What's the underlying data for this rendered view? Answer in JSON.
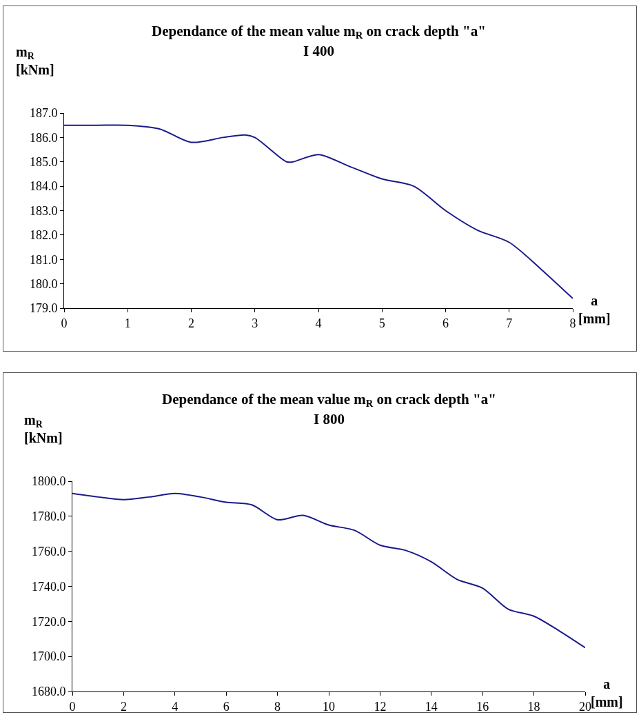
{
  "chart_data": [
    {
      "type": "line",
      "title": "Dependance of the mean value m$_{R}$ on crack depth \"a\"",
      "subtitle": "I 400",
      "ylabel": "m$_{R}$\n[kNm]",
      "xlabel": "a\n[mm]",
      "grid": false,
      "line_style": "solid",
      "x": [
        0,
        0.5,
        1,
        1.5,
        2,
        2.5,
        2.85,
        3,
        3.5,
        3.6,
        4,
        4.5,
        5,
        5.5,
        6,
        6.5,
        7,
        7.5,
        8
      ],
      "series": [
        {
          "color": "#1a1a8c",
          "values": [
            186.5,
            186.5,
            186.5,
            186.35,
            185.8,
            186.0,
            186.1,
            186.0,
            185.0,
            185.0,
            185.3,
            184.8,
            184.3,
            184.0,
            183.0,
            182.2,
            181.7,
            180.6,
            179.4
          ]
        }
      ],
      "xlim": [
        0,
        8
      ],
      "xticks": [
        0,
        1,
        2,
        3,
        4,
        5,
        6,
        7,
        8
      ],
      "ylim": [
        179,
        187
      ],
      "yticks": [
        {
          "value": 179,
          "label": "179.0"
        },
        {
          "value": 180,
          "label": "180.0"
        },
        {
          "value": 181,
          "label": "181.0"
        },
        {
          "value": 182,
          "label": "182.0"
        },
        {
          "value": 183,
          "label": "183.0"
        },
        {
          "value": 184,
          "label": "184.0"
        },
        {
          "value": 185,
          "label": "185.0"
        },
        {
          "value": 186,
          "label": "186.0"
        },
        {
          "value": 187,
          "label": "187.0"
        }
      ]
    },
    {
      "type": "line",
      "title": "Dependance of the mean value m$_{R}$ on crack depth \"a\"",
      "subtitle": "I 800",
      "ylabel": "m$_{R}$\n[kNm]",
      "xlabel": "a\n[mm]",
      "grid": false,
      "line_style": "solid",
      "x": [
        0,
        1,
        2,
        3,
        4,
        5,
        6,
        7,
        8,
        9,
        10,
        11,
        12,
        13,
        14,
        15,
        16,
        17,
        18,
        19,
        20
      ],
      "series": [
        {
          "color": "#1a1a8c",
          "values": [
            1793,
            1791,
            1789.5,
            1791,
            1793,
            1791,
            1788,
            1786.5,
            1778,
            1780.5,
            1775,
            1772,
            1763.5,
            1760.5,
            1754,
            1744,
            1739,
            1727,
            1723,
            1714.5,
            1705
          ]
        }
      ],
      "xlim": [
        0,
        20
      ],
      "xticks": [
        0,
        2,
        4,
        6,
        8,
        10,
        12,
        14,
        16,
        18,
        20
      ],
      "ylim": [
        1680,
        1800
      ],
      "yticks": [
        {
          "value": 1680,
          "label": "1680.0"
        },
        {
          "value": 1700,
          "label": "1700.0"
        },
        {
          "value": 1720,
          "label": "1720.0"
        },
        {
          "value": 1740,
          "label": "1740.0"
        },
        {
          "value": 1760,
          "label": "1760.0"
        },
        {
          "value": 1780,
          "label": "1780.0"
        },
        {
          "value": 1800,
          "label": "1800.0"
        }
      ]
    }
  ]
}
